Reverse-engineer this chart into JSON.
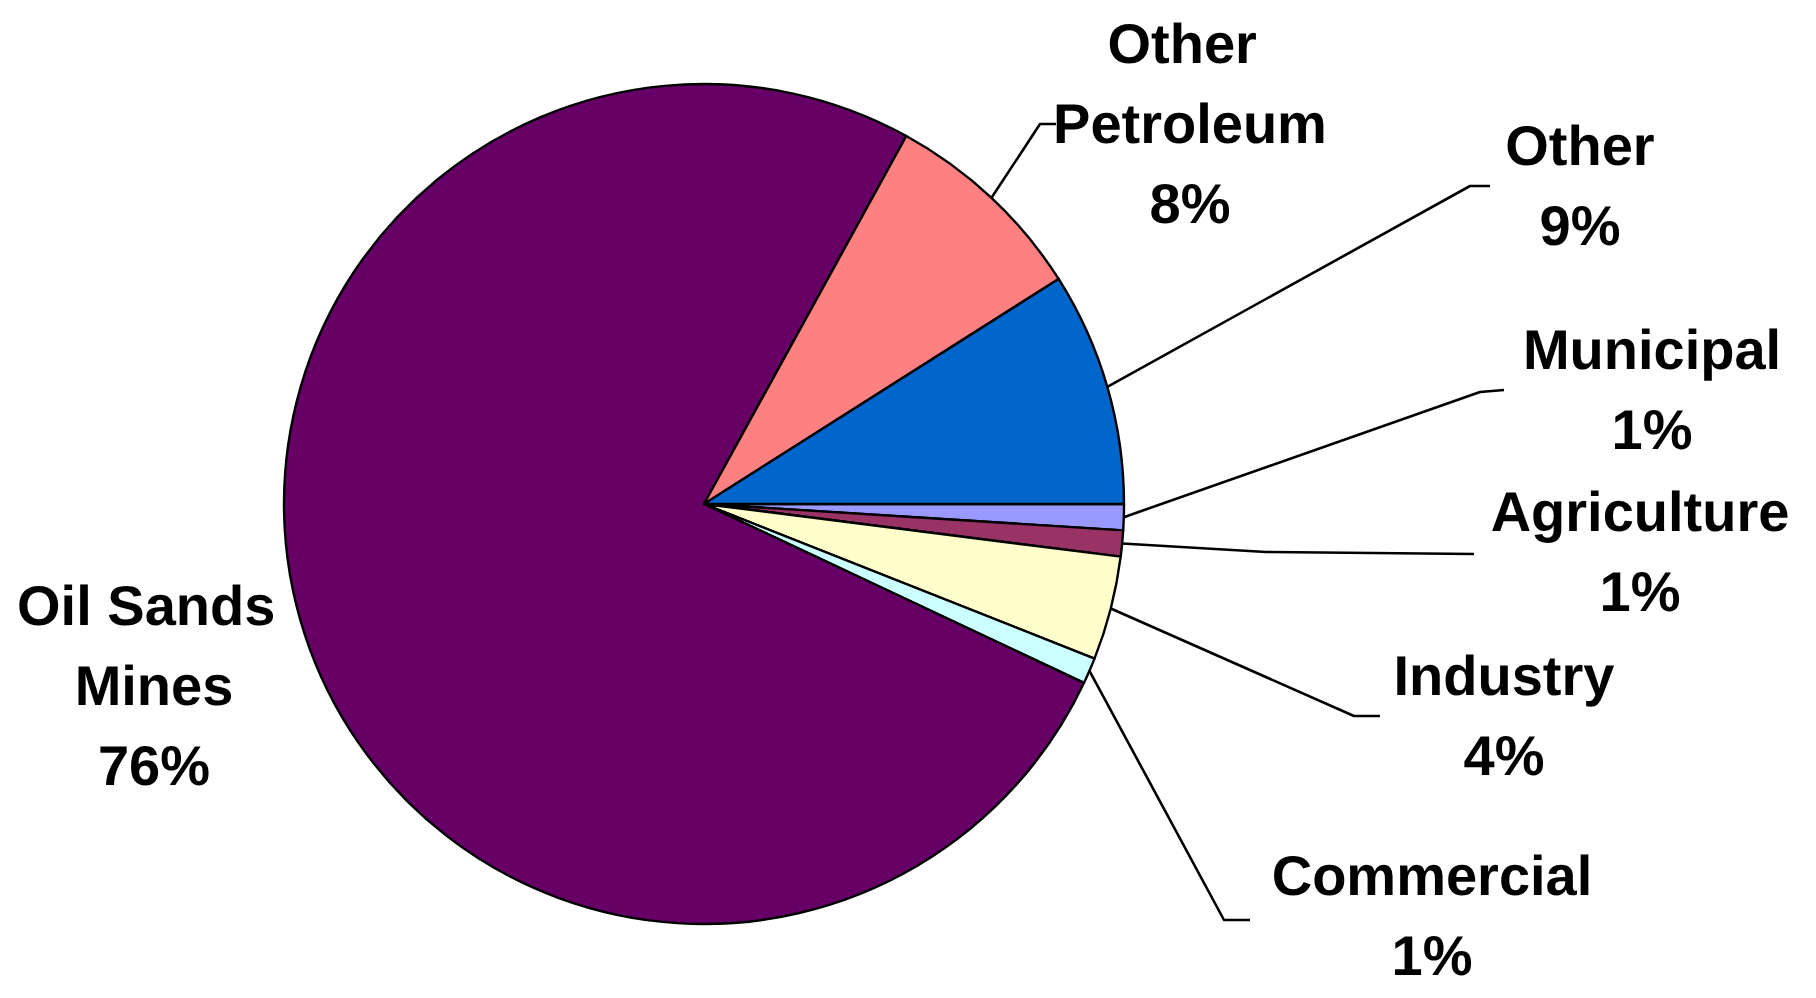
{
  "chart_data": {
    "type": "pie",
    "categories": [
      "Municipal",
      "Agriculture",
      "Industry",
      "Commercial",
      "Oil Sands Mines",
      "Other Petroleum",
      "Other"
    ],
    "values": [
      1,
      1,
      4,
      1,
      76,
      8,
      9
    ],
    "value_labels": [
      "1%",
      "1%",
      "4%",
      "1%",
      "76%",
      "8%",
      "9%"
    ],
    "colors": [
      "#9999ff",
      "#993366",
      "#ffffcc",
      "#ccffff",
      "#660066",
      "#ff8080",
      "#0066cc"
    ]
  }
}
